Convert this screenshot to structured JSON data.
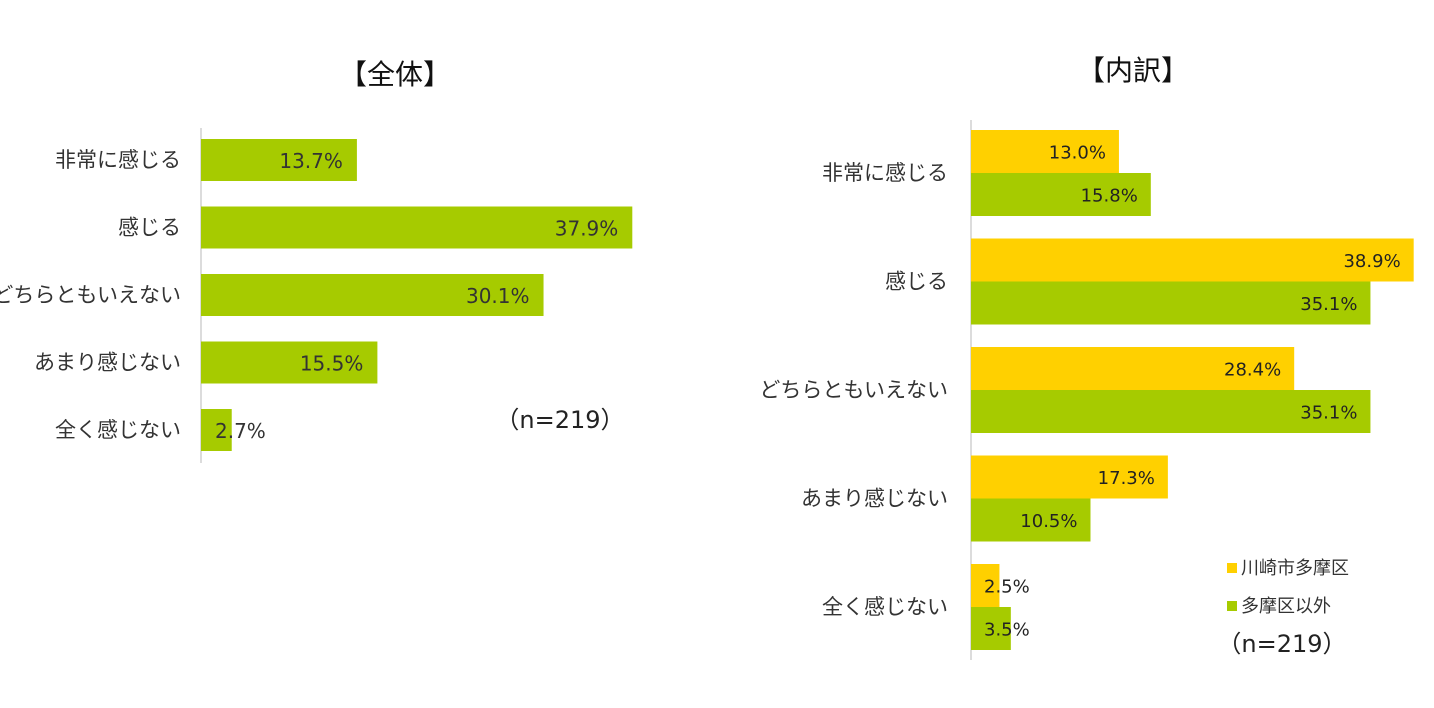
{
  "colors": {
    "green": "#a6cb00",
    "yellow": "#ffd000",
    "axis": "#d0d0d0"
  },
  "chart_data": [
    {
      "type": "bar",
      "orientation": "horizontal",
      "title": "【全体】",
      "categories": [
        "非常に感じる",
        "感じる",
        "どちらともいえない",
        "あまり感じない",
        "全く感じない"
      ],
      "values": [
        13.7,
        37.9,
        30.1,
        15.5,
        2.7
      ],
      "labels": [
        "13.7%",
        "37.9%",
        "30.1%",
        "15.5%",
        "2.7%"
      ],
      "note": "（n=219）",
      "xlim": [
        0,
        100
      ]
    },
    {
      "type": "bar",
      "orientation": "horizontal",
      "title": "【内訳】",
      "categories": [
        "非常に感じる",
        "感じる",
        "どちらともいえない",
        "あまり感じない",
        "全く感じない"
      ],
      "series": [
        {
          "name": "川崎市多摩区",
          "color": "#ffd000",
          "values": [
            13.0,
            38.9,
            28.4,
            17.3,
            2.5
          ],
          "labels": [
            "13.0%",
            "38.9%",
            "28.4%",
            "17.3%",
            "2.5%"
          ]
        },
        {
          "name": "多摩区以外",
          "color": "#a6cb00",
          "values": [
            15.8,
            35.1,
            35.1,
            10.5,
            3.5
          ],
          "labels": [
            "15.8%",
            "35.1%",
            "35.1%",
            "10.5%",
            "3.5%"
          ]
        }
      ],
      "note": "（n=219）",
      "legend": "bottom-right",
      "xlim": [
        0,
        100
      ]
    }
  ]
}
